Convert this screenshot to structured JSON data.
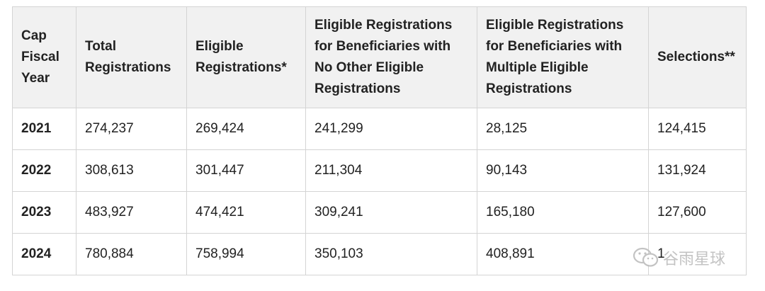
{
  "table": {
    "headers": [
      "Cap Fiscal Year",
      "Total Registrations",
      "Eligible Registrations*",
      "Eligible Registrations for Beneficiaries with No Other Eligible Registrations",
      "Eligible Registrations for Beneficiaries with Multiple Eligible Registrations",
      "Selections**"
    ],
    "rows": [
      [
        "2021",
        "274,237",
        "269,424",
        "241,299",
        "28,125",
        "124,415"
      ],
      [
        "2022",
        "308,613",
        "301,447",
        "211,304",
        "90,143",
        "131,924"
      ],
      [
        "2023",
        "483,927",
        "474,421",
        "309,241",
        "165,180",
        "127,600"
      ],
      [
        "2024",
        "780,884",
        "758,994",
        "350,103",
        "408,891",
        "1"
      ]
    ]
  },
  "watermark": {
    "text": "谷雨星球",
    "icon": "wechat-icon"
  }
}
